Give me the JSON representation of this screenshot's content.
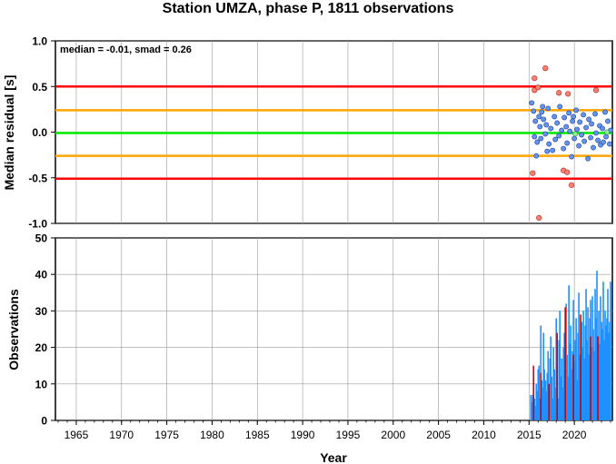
{
  "title": "Station UMZA, phase P, 1811 observations",
  "colors": {
    "red_line": "#ff0000",
    "orange_line": "#ffa500",
    "green_line": "#00ee00",
    "point_normal": "#6495ed",
    "point_outlier": "#fa8072",
    "point_zero": "#90ee90",
    "bar_blue": "#1e90ff",
    "bar_red": "#cc0000",
    "grid": "#999999"
  },
  "chart_data": [
    {
      "type": "scatter",
      "title": "",
      "xlabel": "",
      "ylabel": "Median residual [s]",
      "xlim": [
        1962.7,
        2024.2
      ],
      "ylim": [
        -1.0,
        1.0
      ],
      "yticks": [
        "-1.0",
        "-0.5",
        "0.0",
        "0.5",
        "1.0"
      ],
      "grid": true,
      "annotation": "median = -0.01, smad = 0.26",
      "reference_lines": [
        {
          "y": 0.5,
          "color": "red"
        },
        {
          "y": 0.24,
          "color": "orange"
        },
        {
          "y": -0.01,
          "color": "green"
        },
        {
          "y": -0.26,
          "color": "orange"
        },
        {
          "y": -0.51,
          "color": "red"
        }
      ],
      "outliers": [
        [
          2015.6,
          0.59
        ],
        [
          2015.6,
          0.46
        ],
        [
          2016.0,
          0.49
        ],
        [
          2016.8,
          0.7
        ],
        [
          2015.4,
          -0.45
        ],
        [
          2018.3,
          0.43
        ],
        [
          2019.3,
          0.42
        ],
        [
          2018.8,
          -0.42
        ],
        [
          2019.2,
          -0.44
        ],
        [
          2019.7,
          -0.58
        ],
        [
          2016.1,
          -0.94
        ],
        [
          2022.4,
          0.46
        ]
      ],
      "points": [
        [
          2015.3,
          0.32
        ],
        [
          2015.5,
          0.23
        ],
        [
          2015.6,
          -0.05
        ],
        [
          2015.7,
          0.12
        ],
        [
          2015.9,
          -0.11
        ],
        [
          2016.1,
          0.17
        ],
        [
          2016.2,
          0.06
        ],
        [
          2016.3,
          -0.07
        ],
        [
          2016.5,
          0.28
        ],
        [
          2016.6,
          0.14
        ],
        [
          2016.8,
          -0.02
        ],
        [
          2016.9,
          0.08
        ],
        [
          2017.1,
          0.26
        ],
        [
          2017.2,
          -0.13
        ],
        [
          2017.4,
          0.04
        ],
        [
          2017.6,
          -0.2
        ],
        [
          2017.8,
          0.17
        ],
        [
          2017.9,
          -0.08
        ],
        [
          2018.1,
          0.1
        ],
        [
          2018.3,
          -0.04
        ],
        [
          2018.4,
          0.28
        ],
        [
          2018.6,
          0.02
        ],
        [
          2018.8,
          -0.18
        ],
        [
          2018.9,
          0.16
        ],
        [
          2019.1,
          0.06
        ],
        [
          2019.2,
          -0.12
        ],
        [
          2019.4,
          0.21
        ],
        [
          2019.5,
          0.01
        ],
        [
          2019.7,
          -0.27
        ],
        [
          2019.8,
          0.12
        ],
        [
          2020.0,
          -0.07
        ],
        [
          2020.2,
          0.24
        ],
        [
          2020.3,
          0.03
        ],
        [
          2020.5,
          -0.15
        ],
        [
          2020.6,
          0.11
        ],
        [
          2020.8,
          -0.03
        ],
        [
          2021.0,
          0.19
        ],
        [
          2021.1,
          -0.1
        ],
        [
          2021.3,
          0.05
        ],
        [
          2021.5,
          -0.29
        ],
        [
          2021.6,
          0.14
        ],
        [
          2021.8,
          -0.06
        ],
        [
          2021.9,
          0.09
        ],
        [
          2022.1,
          -0.17
        ],
        [
          2022.3,
          0.2
        ],
        [
          2022.4,
          -0.01
        ],
        [
          2022.6,
          -0.09
        ],
        [
          2022.8,
          0.07
        ],
        [
          2022.9,
          -0.14
        ],
        [
          2023.1,
          0.04
        ],
        [
          2023.2,
          -0.11
        ],
        [
          2023.4,
          0.22
        ],
        [
          2023.5,
          -0.05
        ],
        [
          2023.7,
          0.12
        ],
        [
          2023.9,
          -0.13
        ],
        [
          2024.0,
          0.02
        ],
        [
          2015.8,
          -0.26
        ],
        [
          2016.4,
          0.22
        ],
        [
          2017.0,
          -0.21
        ],
        [
          2019.9,
          0.17
        ]
      ],
      "zero_points": [
        [
          2020.1,
          -0.02
        ],
        [
          2023.6,
          0.0
        ]
      ]
    },
    {
      "type": "bar",
      "title": "",
      "xlabel": "Year",
      "ylabel": "Observations",
      "xlim": [
        1962.7,
        2024.2
      ],
      "ylim": [
        0,
        50
      ],
      "yticks": [
        "0",
        "10",
        "20",
        "30",
        "40",
        "50"
      ],
      "xticks": [
        "1965",
        "1970",
        "1975",
        "1980",
        "1985",
        "1990",
        "1995",
        "2000",
        "2005",
        "2010",
        "2015",
        "2020"
      ],
      "grid": true,
      "series": [
        {
          "color": "blue",
          "x": [
            2015.2,
            2015.3,
            2015.4,
            2015.5,
            2015.6,
            2015.7,
            2015.8,
            2015.9,
            2016.0,
            2016.1,
            2016.2,
            2016.3,
            2016.4,
            2016.5,
            2016.6,
            2016.7,
            2016.8,
            2016.9,
            2017.0,
            2017.1,
            2017.2,
            2017.3,
            2017.4,
            2017.5,
            2017.6,
            2017.7,
            2017.8,
            2017.9,
            2018.0,
            2018.1,
            2018.2,
            2018.3,
            2018.4,
            2018.5,
            2018.6,
            2018.7,
            2018.8,
            2018.9,
            2019.0,
            2019.1,
            2019.2,
            2019.3,
            2019.4,
            2019.5,
            2019.6,
            2019.7,
            2019.8,
            2019.9,
            2020.0,
            2020.1,
            2020.2,
            2020.3,
            2020.4,
            2020.5,
            2020.6,
            2020.7,
            2020.8,
            2020.9,
            2021.0,
            2021.1,
            2021.2,
            2021.3,
            2021.4,
            2021.5,
            2021.6,
            2021.7,
            2021.8,
            2021.9,
            2022.0,
            2022.1,
            2022.2,
            2022.3,
            2022.4,
            2022.5,
            2022.6,
            2022.7,
            2022.8,
            2022.9,
            2023.0,
            2023.1,
            2023.2,
            2023.3,
            2023.4,
            2023.5,
            2023.6,
            2023.7,
            2023.8,
            2023.9,
            2024.0
          ],
          "values": [
            7,
            5,
            7,
            12,
            6,
            4,
            10,
            8,
            14,
            15,
            6,
            26,
            11,
            9,
            24,
            14,
            11,
            8,
            13,
            19,
            7,
            17,
            23,
            12,
            6,
            20,
            14,
            9,
            28,
            18,
            6,
            22,
            30,
            12,
            17,
            9,
            20,
            24,
            15,
            32,
            18,
            12,
            37,
            21,
            26,
            14,
            19,
            33,
            16,
            22,
            28,
            11,
            24,
            35,
            18,
            15,
            27,
            20,
            30,
            17,
            26,
            36,
            22,
            31,
            18,
            28,
            33,
            20,
            34,
            25,
            19,
            36,
            28,
            41,
            23,
            30,
            21,
            34,
            27,
            25,
            38,
            22,
            30,
            26,
            28,
            36,
            24,
            27,
            38
          ]
        },
        {
          "color": "red",
          "x": [
            2015.5,
            2016.3,
            2017.2,
            2018.1,
            2019.0,
            2019.9,
            2020.7,
            2021.8,
            2022.6
          ],
          "values": [
            15,
            13,
            10,
            24,
            31,
            18,
            29,
            23,
            23
          ]
        }
      ]
    }
  ]
}
